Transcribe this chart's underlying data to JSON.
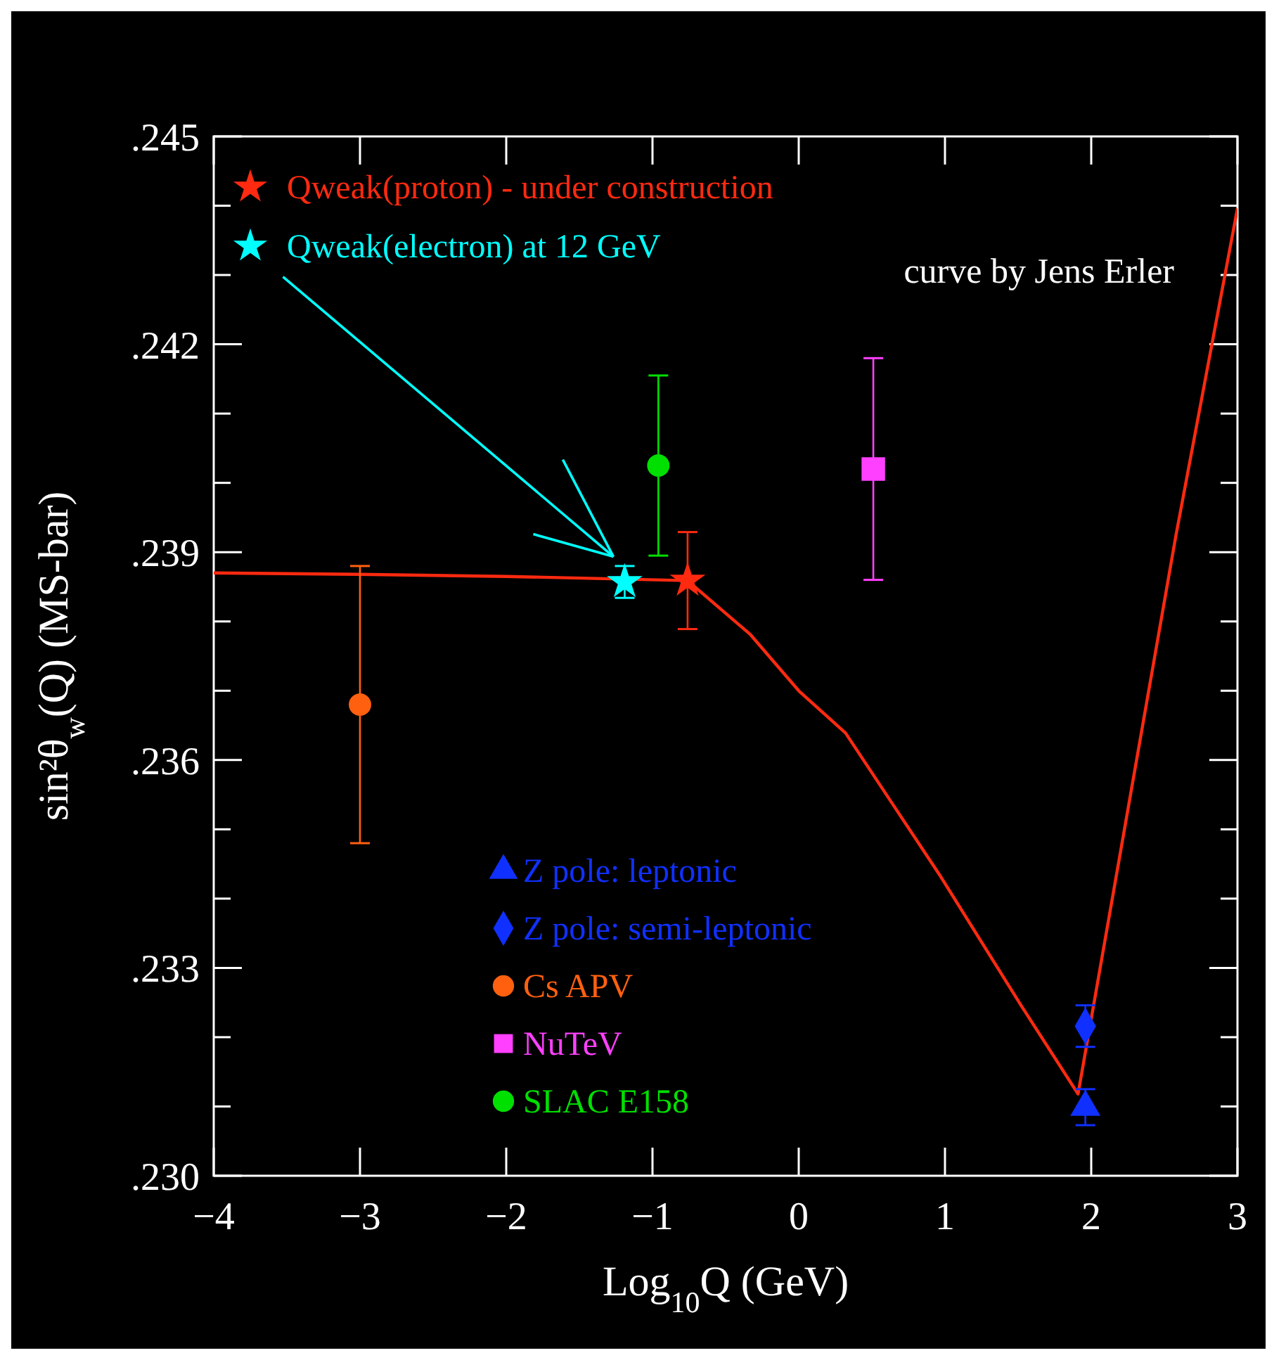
{
  "chart_data": {
    "type": "scatter",
    "xlabel": "Log$_{10}$Q (GeV)",
    "ylabel": "sin²θ$_{w}$(Q)  (MS-bar)",
    "annotations": [
      "curve by Jens Erler"
    ],
    "xlim": [
      -4,
      3
    ],
    "xticks": [
      -4,
      -3,
      -2,
      -1,
      0,
      1,
      2,
      3
    ],
    "ylim": [
      0.23,
      0.245
    ],
    "yticks": [
      {
        "value": 0.23,
        "label": ".230"
      },
      {
        "value": 0.231,
        "label": null
      },
      {
        "value": 0.232,
        "label": null
      },
      {
        "value": 0.233,
        "label": ".233"
      },
      {
        "value": 0.234,
        "label": null
      },
      {
        "value": 0.235,
        "label": null
      },
      {
        "value": 0.236,
        "label": ".236"
      },
      {
        "value": 0.237,
        "label": null
      },
      {
        "value": 0.238,
        "label": null
      },
      {
        "value": 0.239,
        "label": ".239"
      },
      {
        "value": 0.24,
        "label": null
      },
      {
        "value": 0.241,
        "label": null
      },
      {
        "value": 0.242,
        "label": ".242"
      },
      {
        "value": 0.243,
        "label": null
      },
      {
        "value": 0.244,
        "label": null
      },
      {
        "value": 0.245,
        "label": ".245"
      }
    ],
    "grid": false,
    "legend": "top left",
    "series": [
      {
        "type": "line",
        "color": "#ff2a10",
        "marker": "none",
        "line_style": "solid",
        "x": [
          -4,
          -3,
          -2,
          -0.76,
          -0.33,
          0,
          0.32,
          0.97,
          1.52,
          1.91,
          2.58,
          3
        ],
        "values": [
          0.2387,
          0.23868,
          0.23865,
          0.23859,
          0.23781,
          0.237,
          0.23639,
          0.23432,
          0.23246,
          0.23118,
          0.23925,
          0.24396
        ]
      },
      {
        "name": "Qweak(proton) - under construction",
        "color": "#ff2a10",
        "marker": "star",
        "x": [
          -0.76
        ],
        "values": [
          0.23859
        ],
        "errors": [
          0.0007
        ]
      },
      {
        "name": "Qweak(electron) at 12 GeV",
        "color": "#00ffff",
        "marker": "star",
        "x": [
          -1.19
        ],
        "values": [
          0.23857
        ],
        "errors": [
          0.00023
        ]
      },
      {
        "name": "Z pole: leptonic",
        "color": "#1030ff",
        "marker": "triangle",
        "x": [
          1.96
        ],
        "values": [
          0.23099
        ],
        "errors": [
          0.00026
        ]
      },
      {
        "name": "Z pole: semi-leptonic",
        "color": "#1030ff",
        "marker": "diamond",
        "x": [
          1.96
        ],
        "values": [
          0.23216
        ],
        "errors": [
          0.0003
        ]
      },
      {
        "name": "Cs APV",
        "color": "#ff6010",
        "marker": "circle",
        "x": [
          -3
        ],
        "values": [
          0.2368
        ],
        "errors": [
          0.002
        ]
      },
      {
        "name": "NuTeV",
        "color": "#ff40ff",
        "marker": "square",
        "x": [
          0.51
        ],
        "values": [
          0.2402
        ],
        "errors": [
          0.0016
        ]
      },
      {
        "name": "SLAC E158",
        "color": "#00e000",
        "marker": "circle",
        "x": [
          -0.96
        ],
        "values": [
          0.24025
        ],
        "errors": [
          0.0013
        ]
      }
    ]
  }
}
